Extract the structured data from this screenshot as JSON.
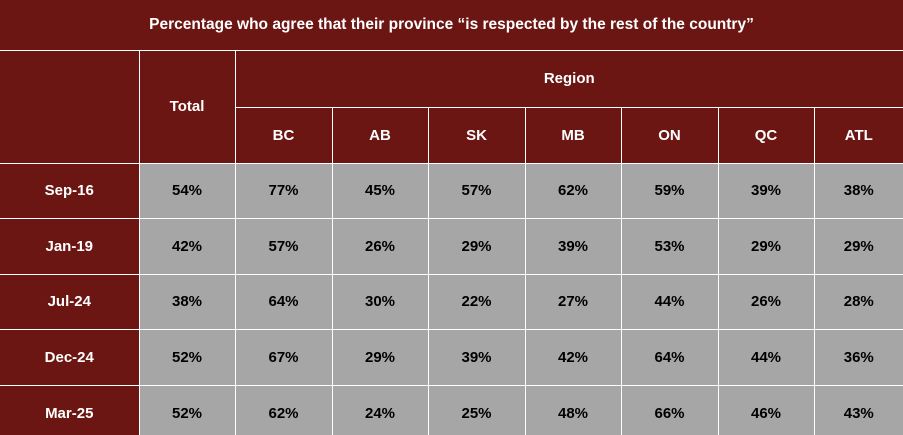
{
  "chart_data": {
    "type": "table",
    "title": "Percentage who agree that their province “is respected by the rest of the country”",
    "total_label": "Total",
    "group_label": "Region",
    "columns": [
      "BC",
      "AB",
      "SK",
      "MB",
      "ON",
      "QC",
      "ATL"
    ],
    "rows": [
      {
        "label": "Sep-16",
        "total": "54%",
        "values": [
          "77%",
          "45%",
          "57%",
          "62%",
          "59%",
          "39%",
          "38%"
        ]
      },
      {
        "label": "Jan-19",
        "total": "42%",
        "values": [
          "57%",
          "26%",
          "29%",
          "39%",
          "53%",
          "29%",
          "29%"
        ]
      },
      {
        "label": "Jul-24",
        "total": "38%",
        "values": [
          "64%",
          "30%",
          "22%",
          "27%",
          "44%",
          "26%",
          "28%"
        ]
      },
      {
        "label": "Dec-24",
        "total": "52%",
        "values": [
          "67%",
          "29%",
          "39%",
          "42%",
          "64%",
          "44%",
          "36%"
        ]
      },
      {
        "label": "Mar-25",
        "total": "52%",
        "values": [
          "62%",
          "24%",
          "25%",
          "48%",
          "66%",
          "46%",
          "43%"
        ]
      }
    ]
  },
  "colors": {
    "header_bg": "#6b1613",
    "cell_bg": "#a6a6a6",
    "header_text": "#ffffff",
    "cell_text": "#000000",
    "grid": "#ffffff"
  }
}
